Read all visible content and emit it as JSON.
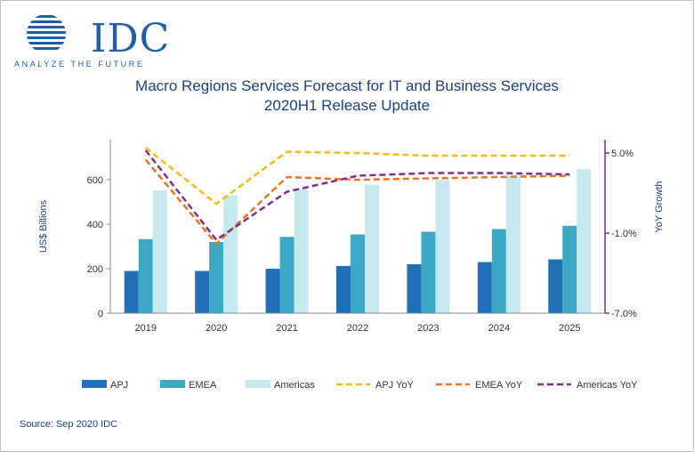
{
  "logo": {
    "name": "IDC",
    "tagline": "ANALYZE THE FUTURE"
  },
  "title_line1": "Macro Regions Services Forecast for IT and Business Services",
  "title_line2": "2020H1 Release Update",
  "source": "Source: Sep 2020 IDC",
  "colors": {
    "apj": "#2170b7",
    "emea": "#3ba8c6",
    "americas": "#c6e8ef",
    "apj_yoy": "#f5b820",
    "emea_yoy": "#ee7424",
    "americas_yoy": "#7c3189"
  },
  "chart_data": {
    "type": "bar",
    "xlabel": "",
    "ylabel": "US$ Billions",
    "y2label": "YoY Growth",
    "categories": [
      "2019",
      "2020",
      "2021",
      "2022",
      "2023",
      "2024",
      "2025"
    ],
    "ylim": [
      0,
      780
    ],
    "yticks": [
      "0",
      "200",
      "400",
      "600"
    ],
    "ytick_values": [
      0,
      200,
      400,
      600
    ],
    "y2lim": [
      -7.0,
      6.0
    ],
    "y2ticks": [
      "5.0%",
      "-1.0%",
      "-7.0%"
    ],
    "y2tick_values": [
      5.0,
      -1.0,
      -7.0
    ],
    "series": [
      {
        "name": "APJ",
        "kind": "bar",
        "values": [
          190,
          190,
          200,
          212,
          220,
          230,
          242
        ]
      },
      {
        "name": "EMEA",
        "kind": "bar",
        "values": [
          333,
          320,
          343,
          354,
          366,
          378,
          393
        ]
      },
      {
        "name": "Americas",
        "kind": "bar",
        "values": [
          552,
          530,
          558,
          578,
          598,
          622,
          647
        ]
      },
      {
        "name": "APJ YoY",
        "kind": "line",
        "axis": "right",
        "values": [
          5.4,
          1.2,
          5.1,
          5.0,
          4.8,
          4.8,
          4.8
        ]
      },
      {
        "name": "EMEA YoY",
        "kind": "line",
        "axis": "right",
        "values": [
          4.5,
          -1.8,
          3.2,
          3.0,
          3.1,
          3.2,
          3.3
        ]
      },
      {
        "name": "Americas YoY",
        "kind": "line",
        "axis": "right",
        "values": [
          5.2,
          -1.5,
          2.1,
          3.3,
          3.5,
          3.5,
          3.4
        ]
      }
    ],
    "legend_position": "bottom",
    "grid": false
  }
}
